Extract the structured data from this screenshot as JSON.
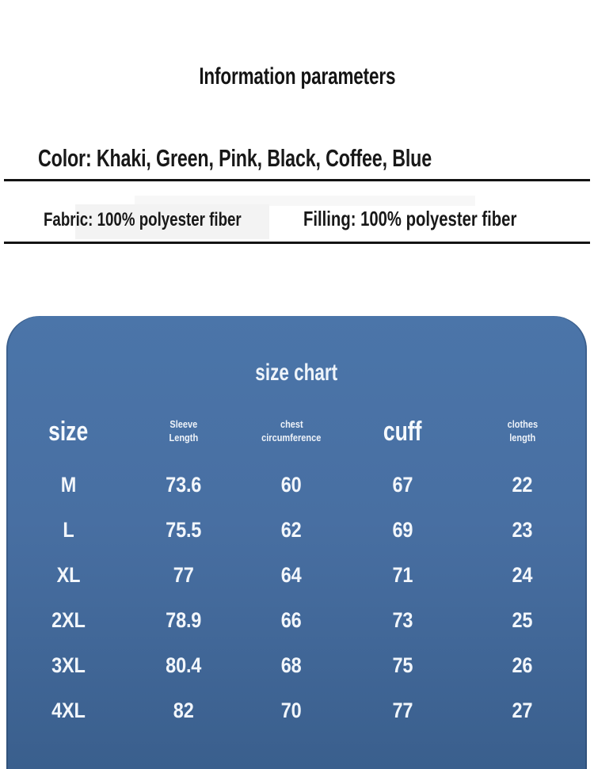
{
  "page": {
    "title": "Information parameters",
    "color_info": "Color: Khaki, Green, Pink, Black, Coffee, Blue",
    "fabric_info": "Fabric: 100% polyester fiber",
    "filling_info": "Filling: 100% polyester fiber"
  },
  "size_chart": {
    "title": "size chart",
    "panel_color_top": "#4b75a9",
    "panel_color_bottom": "#3a5f8d",
    "text_color": "#f3f7fb",
    "headers": [
      {
        "text": "size"
      },
      {
        "line1": "Sleeve",
        "line2": "Length"
      },
      {
        "line1": "chest",
        "line2": "circumference"
      },
      {
        "text": "cuff"
      },
      {
        "line1": "clothes",
        "line2": "length"
      }
    ],
    "rows": [
      {
        "cells": [
          "M",
          "73.6",
          "60",
          "67",
          "22"
        ]
      },
      {
        "cells": [
          "L",
          "75.5",
          "62",
          "69",
          "23"
        ]
      },
      {
        "cells": [
          "XL",
          "77",
          "64",
          "71",
          "24"
        ]
      },
      {
        "cells": [
          "2XL",
          "78.9",
          "66",
          "73",
          "25"
        ]
      },
      {
        "cells": [
          "3XL",
          "80.4",
          "68",
          "75",
          "26"
        ]
      },
      {
        "cells": [
          "4XL",
          "82",
          "70",
          "77",
          "27"
        ]
      }
    ]
  },
  "chart_data": {
    "type": "table",
    "title": "size chart",
    "columns": [
      "size",
      "Sleeve Length",
      "chest circumference",
      "cuff",
      "clothes length"
    ],
    "rows": [
      [
        "M",
        73.6,
        60,
        67,
        22
      ],
      [
        "L",
        75.5,
        62,
        69,
        23
      ],
      [
        "XL",
        77,
        64,
        71,
        24
      ],
      [
        "2XL",
        78.9,
        66,
        73,
        25
      ],
      [
        "3XL",
        80.4,
        68,
        75,
        26
      ],
      [
        "4XL",
        82,
        70,
        77,
        27
      ]
    ]
  }
}
